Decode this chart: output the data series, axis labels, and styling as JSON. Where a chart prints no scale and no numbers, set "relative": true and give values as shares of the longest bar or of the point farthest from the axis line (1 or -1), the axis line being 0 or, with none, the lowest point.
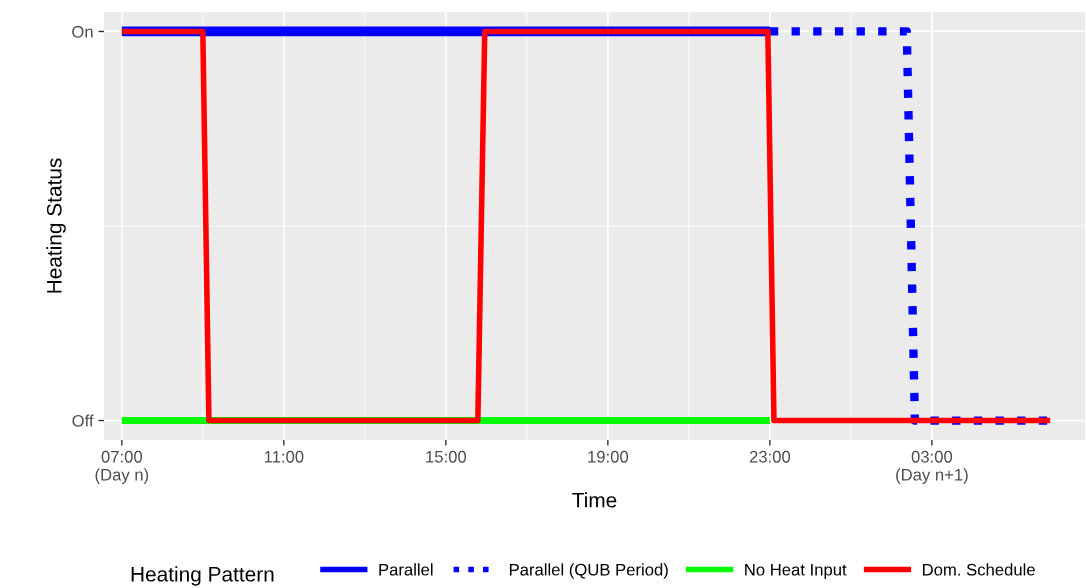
{
  "chart_data": {
    "type": "line",
    "xlabel": "Time",
    "ylabel": "Heating Status",
    "legend_title": "Heating Pattern",
    "legend": "bottom",
    "grid": true,
    "xlim": [
      6.56,
      30.78
    ],
    "relative": true,
    "y_categories": [
      "On",
      "Off"
    ],
    "xticks": [
      {
        "value": 7,
        "label": "07:00\n(Day n)"
      },
      {
        "value": 11,
        "label": "11:00"
      },
      {
        "value": 15,
        "label": "15:00"
      },
      {
        "value": 19,
        "label": "19:00"
      },
      {
        "value": 23,
        "label": "23:00"
      },
      {
        "value": 27,
        "label": "03:00\n(Day n+1)"
      }
    ],
    "series": [
      {
        "name": "Parallel",
        "color": "#0000ff",
        "line_style": "solid",
        "x": [
          7,
          23
        ],
        "values": [
          1,
          1
        ]
      },
      {
        "name": "Parallel (QUB Period)",
        "color": "#0000ff",
        "line_style": "dotted",
        "x": [
          23,
          26.38,
          26.58,
          29.92
        ],
        "values": [
          1,
          1,
          0,
          0
        ]
      },
      {
        "name": "No Heat Input",
        "color": "#00ff00",
        "line_style": "solid",
        "x": [
          7,
          23
        ],
        "values": [
          0,
          0
        ]
      },
      {
        "name": "Dom. Schedule",
        "color": "#ff0000",
        "line_style": "solid",
        "x": [
          7,
          9.0,
          9.15,
          15.79,
          15.96,
          22.95,
          23.1,
          29.92
        ],
        "values": [
          1,
          1,
          0,
          0,
          1,
          1,
          0,
          0
        ]
      }
    ]
  }
}
